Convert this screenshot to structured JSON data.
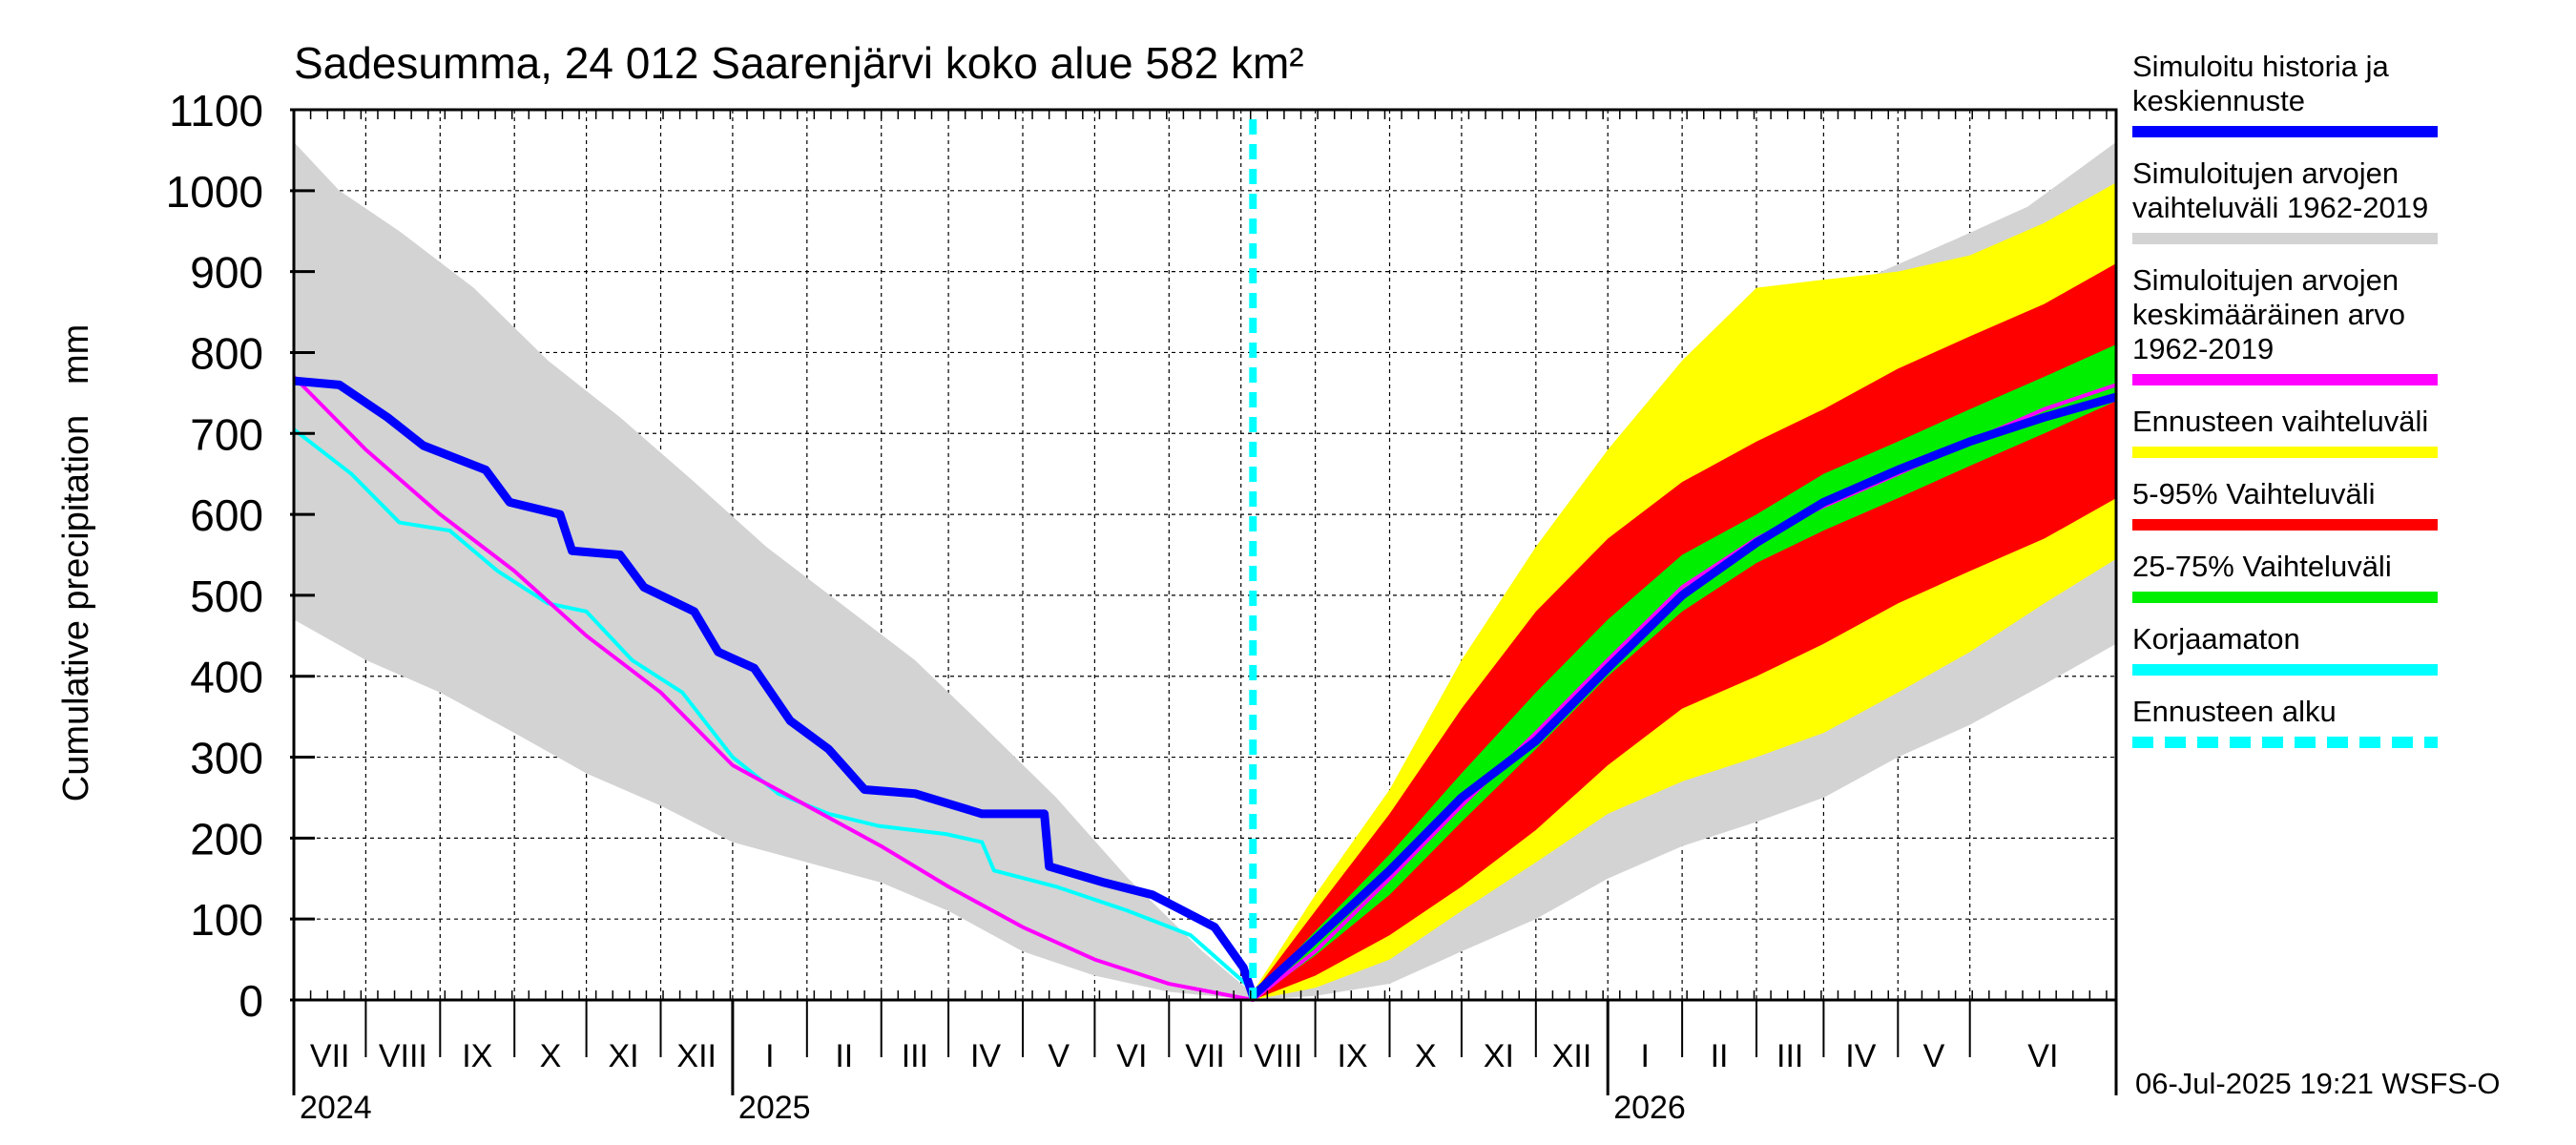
{
  "chart_data": {
    "type": "area",
    "title": "Sadesumma, 24 012 Saarenjärvi koko alue 582 km²",
    "ylabel": "Cumulative precipitation   mm",
    "xlabel": "",
    "ylim": [
      0,
      1100
    ],
    "yticks": [
      0,
      100,
      200,
      300,
      400,
      500,
      600,
      700,
      800,
      900,
      1000,
      1100
    ],
    "grid": true,
    "legend_position": "right",
    "x_range": [
      "2024-06-01",
      "2026-07-01"
    ],
    "forecast_start": "2025-07-06",
    "month_labels": [
      {
        "date": "2024-06-01",
        "label": "VII"
      },
      {
        "date": "2024-07-01",
        "label": "VIII"
      },
      {
        "date": "2024-08-01",
        "label": "IX"
      },
      {
        "date": "2024-09-01",
        "label": "X"
      },
      {
        "date": "2024-10-01",
        "label": "XI"
      },
      {
        "date": "2024-11-01",
        "label": "XII"
      },
      {
        "date": "2024-12-01",
        "label": "I"
      },
      {
        "date": "2025-01-01",
        "label": "II"
      },
      {
        "date": "2025-02-01",
        "label": "III"
      },
      {
        "date": "2025-03-01",
        "label": "IV"
      },
      {
        "date": "2025-04-01",
        "label": "V"
      },
      {
        "date": "2025-05-01",
        "label": "VI"
      },
      {
        "date": "2025-06-01",
        "label": "VII"
      },
      {
        "date": "2025-07-01",
        "label": "VIII"
      },
      {
        "date": "2025-08-01",
        "label": "IX"
      },
      {
        "date": "2025-09-01",
        "label": "X"
      },
      {
        "date": "2025-10-01",
        "label": "XI"
      },
      {
        "date": "2025-11-01",
        "label": "XII"
      },
      {
        "date": "2025-12-01",
        "label": "I"
      },
      {
        "date": "2026-01-01",
        "label": "II"
      },
      {
        "date": "2026-02-01",
        "label": "III"
      },
      {
        "date": "2026-03-01",
        "label": "IV"
      },
      {
        "date": "2026-04-01",
        "label": "V"
      },
      {
        "date": "2026-05-01",
        "label": "VI"
      }
    ],
    "year_labels": [
      {
        "date": "2024-06-01",
        "label": "2024"
      },
      {
        "date": "2024-12-01",
        "label": "2025"
      },
      {
        "date": "2025-12-01",
        "label": "2026"
      }
    ],
    "bands": [
      {
        "name": "Simuloitujen arvojen vaihteluväli 1962-2019",
        "color": "#d3d3d3",
        "upper": [
          [
            "2024-06-01",
            1060
          ],
          [
            "2024-06-20",
            1000
          ],
          [
            "2024-07-15",
            950
          ],
          [
            "2024-08-15",
            880
          ],
          [
            "2024-09-15",
            790
          ],
          [
            "2024-10-15",
            720
          ],
          [
            "2024-11-15",
            640
          ],
          [
            "2024-12-15",
            560
          ],
          [
            "2025-01-15",
            490
          ],
          [
            "2025-02-15",
            420
          ],
          [
            "2025-03-15",
            340
          ],
          [
            "2025-04-15",
            250
          ],
          [
            "2025-05-15",
            150
          ],
          [
            "2025-06-15",
            60
          ],
          [
            "2025-07-06",
            8
          ],
          [
            "2025-07-25",
            80
          ],
          [
            "2025-08-25",
            200
          ],
          [
            "2025-09-25",
            330
          ],
          [
            "2025-10-25",
            470
          ],
          [
            "2025-11-25",
            590
          ],
          [
            "2025-12-25",
            700
          ],
          [
            "2026-01-25",
            790
          ],
          [
            "2026-02-25",
            860
          ],
          [
            "2026-03-25",
            900
          ],
          [
            "2026-04-25",
            940
          ],
          [
            "2026-05-25",
            980
          ],
          [
            "2026-07-01",
            1060
          ]
        ],
        "lower": [
          [
            "2024-06-01",
            470
          ],
          [
            "2024-07-01",
            420
          ],
          [
            "2024-08-01",
            380
          ],
          [
            "2024-09-01",
            330
          ],
          [
            "2024-10-01",
            280
          ],
          [
            "2024-11-01",
            240
          ],
          [
            "2024-12-01",
            195
          ],
          [
            "2025-01-01",
            170
          ],
          [
            "2025-02-01",
            145
          ],
          [
            "2025-03-01",
            110
          ],
          [
            "2025-04-01",
            60
          ],
          [
            "2025-05-01",
            30
          ],
          [
            "2025-06-01",
            10
          ],
          [
            "2025-07-06",
            0
          ],
          [
            "2025-08-01",
            5
          ],
          [
            "2025-09-01",
            20
          ],
          [
            "2025-10-01",
            60
          ],
          [
            "2025-11-01",
            100
          ],
          [
            "2025-12-01",
            150
          ],
          [
            "2026-01-01",
            190
          ],
          [
            "2026-02-01",
            220
          ],
          [
            "2026-03-01",
            250
          ],
          [
            "2026-04-01",
            300
          ],
          [
            "2026-05-01",
            340
          ],
          [
            "2026-06-01",
            390
          ],
          [
            "2026-07-01",
            440
          ]
        ]
      },
      {
        "name": "Ennusteen vaihteluväli",
        "color": "#ffff00",
        "upper": [
          [
            "2025-07-06",
            10
          ],
          [
            "2025-08-01",
            130
          ],
          [
            "2025-09-01",
            260
          ],
          [
            "2025-10-01",
            420
          ],
          [
            "2025-11-01",
            560
          ],
          [
            "2025-12-01",
            680
          ],
          [
            "2026-01-01",
            790
          ],
          [
            "2026-02-01",
            880
          ],
          [
            "2026-03-01",
            890
          ],
          [
            "2026-04-01",
            900
          ],
          [
            "2026-05-01",
            920
          ],
          [
            "2026-06-01",
            960
          ],
          [
            "2026-07-01",
            1010
          ]
        ],
        "lower": [
          [
            "2025-07-06",
            0
          ],
          [
            "2025-08-01",
            15
          ],
          [
            "2025-09-01",
            50
          ],
          [
            "2025-10-01",
            110
          ],
          [
            "2025-11-01",
            170
          ],
          [
            "2025-12-01",
            230
          ],
          [
            "2026-01-01",
            270
          ],
          [
            "2026-02-01",
            300
          ],
          [
            "2026-03-01",
            330
          ],
          [
            "2026-04-01",
            380
          ],
          [
            "2026-05-01",
            430
          ],
          [
            "2026-06-01",
            490
          ],
          [
            "2026-07-01",
            545
          ]
        ]
      },
      {
        "name": "5-95% Vaihteluväli",
        "color": "#ff0000",
        "upper": [
          [
            "2025-07-06",
            8
          ],
          [
            "2025-08-01",
            110
          ],
          [
            "2025-09-01",
            230
          ],
          [
            "2025-10-01",
            360
          ],
          [
            "2025-11-01",
            480
          ],
          [
            "2025-12-01",
            570
          ],
          [
            "2026-01-01",
            640
          ],
          [
            "2026-02-01",
            690
          ],
          [
            "2026-03-01",
            730
          ],
          [
            "2026-04-01",
            780
          ],
          [
            "2026-05-01",
            820
          ],
          [
            "2026-06-01",
            860
          ],
          [
            "2026-07-01",
            910
          ]
        ],
        "lower": [
          [
            "2025-07-06",
            0
          ],
          [
            "2025-08-01",
            30
          ],
          [
            "2025-09-01",
            80
          ],
          [
            "2025-10-01",
            140
          ],
          [
            "2025-11-01",
            210
          ],
          [
            "2025-12-01",
            290
          ],
          [
            "2026-01-01",
            360
          ],
          [
            "2026-02-01",
            400
          ],
          [
            "2026-03-01",
            440
          ],
          [
            "2026-04-01",
            490
          ],
          [
            "2026-05-01",
            530
          ],
          [
            "2026-06-01",
            570
          ],
          [
            "2026-07-01",
            620
          ]
        ]
      },
      {
        "name": "25-75% Vaihteluväli",
        "color": "#00ee00",
        "upper": [
          [
            "2025-07-06",
            5
          ],
          [
            "2025-08-01",
            85
          ],
          [
            "2025-09-01",
            180
          ],
          [
            "2025-10-01",
            280
          ],
          [
            "2025-11-01",
            380
          ],
          [
            "2025-12-01",
            470
          ],
          [
            "2026-01-01",
            550
          ],
          [
            "2026-02-01",
            600
          ],
          [
            "2026-03-01",
            650
          ],
          [
            "2026-04-01",
            690
          ],
          [
            "2026-05-01",
            730
          ],
          [
            "2026-06-01",
            770
          ],
          [
            "2026-07-01",
            810
          ]
        ],
        "lower": [
          [
            "2025-07-06",
            0
          ],
          [
            "2025-08-01",
            55
          ],
          [
            "2025-09-01",
            130
          ],
          [
            "2025-10-01",
            220
          ],
          [
            "2025-11-01",
            310
          ],
          [
            "2025-12-01",
            400
          ],
          [
            "2026-01-01",
            480
          ],
          [
            "2026-02-01",
            540
          ],
          [
            "2026-03-01",
            580
          ],
          [
            "2026-04-01",
            620
          ],
          [
            "2026-05-01",
            660
          ],
          [
            "2026-06-01",
            700
          ],
          [
            "2026-07-01",
            740
          ]
        ]
      }
    ],
    "series": [
      {
        "name": "Korjaamaton",
        "color": "#00ffff",
        "width": 4,
        "points": [
          [
            "2024-06-01",
            705
          ],
          [
            "2024-06-25",
            650
          ],
          [
            "2024-07-15",
            590
          ],
          [
            "2024-08-05",
            580
          ],
          [
            "2024-08-25",
            530
          ],
          [
            "2024-09-15",
            490
          ],
          [
            "2024-10-01",
            480
          ],
          [
            "2024-10-20",
            420
          ],
          [
            "2024-11-10",
            380
          ],
          [
            "2024-12-01",
            300
          ],
          [
            "2024-12-20",
            255
          ],
          [
            "2025-01-10",
            230
          ],
          [
            "2025-01-31",
            215
          ],
          [
            "2025-02-28",
            205
          ],
          [
            "2025-03-15",
            195
          ],
          [
            "2025-03-20",
            160
          ],
          [
            "2025-04-15",
            140
          ],
          [
            "2025-05-15",
            110
          ],
          [
            "2025-06-10",
            80
          ],
          [
            "2025-07-03",
            20
          ],
          [
            "2025-07-06",
            5
          ]
        ]
      },
      {
        "name": "Simuloitujen arvojen keskimääräinen arvo 1962-2019",
        "color": "#ff00ff",
        "width": 4,
        "points": [
          [
            "2024-06-01",
            770
          ],
          [
            "2024-07-01",
            680
          ],
          [
            "2024-08-01",
            600
          ],
          [
            "2024-09-01",
            530
          ],
          [
            "2024-10-01",
            450
          ],
          [
            "2024-11-01",
            380
          ],
          [
            "2024-12-01",
            290
          ],
          [
            "2025-01-01",
            240
          ],
          [
            "2025-02-01",
            190
          ],
          [
            "2025-03-01",
            140
          ],
          [
            "2025-04-01",
            90
          ],
          [
            "2025-05-01",
            50
          ],
          [
            "2025-06-01",
            20
          ],
          [
            "2025-07-06",
            0
          ],
          [
            "2025-08-01",
            60
          ],
          [
            "2025-09-01",
            150
          ],
          [
            "2025-10-01",
            240
          ],
          [
            "2025-11-01",
            330
          ],
          [
            "2025-12-01",
            420
          ],
          [
            "2026-01-01",
            510
          ],
          [
            "2026-02-01",
            570
          ],
          [
            "2026-03-01",
            610
          ],
          [
            "2026-04-01",
            650
          ],
          [
            "2026-05-01",
            690
          ],
          [
            "2026-06-01",
            730
          ],
          [
            "2026-07-01",
            760
          ]
        ]
      },
      {
        "name": "Simuloitu historia ja keskiennuste",
        "color": "#0000ff",
        "width": 9,
        "points": [
          [
            "2024-06-01",
            765
          ],
          [
            "2024-06-20",
            760
          ],
          [
            "2024-07-10",
            720
          ],
          [
            "2024-07-25",
            685
          ],
          [
            "2024-08-20",
            655
          ],
          [
            "2024-08-30",
            615
          ],
          [
            "2024-09-20",
            600
          ],
          [
            "2024-09-25",
            555
          ],
          [
            "2024-10-15",
            550
          ],
          [
            "2024-10-25",
            510
          ],
          [
            "2024-11-15",
            480
          ],
          [
            "2024-11-25",
            430
          ],
          [
            "2024-12-10",
            410
          ],
          [
            "2024-12-25",
            345
          ],
          [
            "2025-01-10",
            310
          ],
          [
            "2025-01-25",
            260
          ],
          [
            "2025-02-15",
            255
          ],
          [
            "2025-03-15",
            230
          ],
          [
            "2025-04-10",
            230
          ],
          [
            "2025-04-12",
            165
          ],
          [
            "2025-05-05",
            145
          ],
          [
            "2025-05-25",
            130
          ],
          [
            "2025-06-20",
            90
          ],
          [
            "2025-07-02",
            40
          ],
          [
            "2025-07-06",
            5
          ],
          [
            "2025-08-01",
            75
          ],
          [
            "2025-09-01",
            160
          ],
          [
            "2025-10-01",
            250
          ],
          [
            "2025-11-01",
            320
          ],
          [
            "2025-12-01",
            410
          ],
          [
            "2026-01-01",
            500
          ],
          [
            "2026-02-01",
            565
          ],
          [
            "2026-03-01",
            615
          ],
          [
            "2026-04-01",
            655
          ],
          [
            "2026-05-01",
            690
          ],
          [
            "2026-06-01",
            720
          ],
          [
            "2026-07-01",
            745
          ]
        ]
      }
    ],
    "vline": {
      "name": "Ennusteen alku",
      "date": "2025-07-06",
      "color": "#00ffff"
    }
  },
  "legend": [
    {
      "label": "Simuloitu historia ja\nkeskiennuste",
      "color": "#0000ff"
    },
    {
      "label": "Simuloitujen arvojen\nvaihteluväli 1962-2019",
      "color": "#d3d3d3"
    },
    {
      "label": "Simuloitujen arvojen\nkeskimääräinen arvo\n   1962-2019",
      "color": "#ff00ff"
    },
    {
      "label": "Ennusteen vaihteluväli",
      "color": "#ffff00"
    },
    {
      "label": "5-95% Vaihteluväli",
      "color": "#ff0000"
    },
    {
      "label": "25-75% Vaihteluväli",
      "color": "#00ee00"
    },
    {
      "label": "Korjaamaton",
      "color": "#00ffff"
    },
    {
      "label": "Ennusteen alku",
      "color": "#00ffff"
    }
  ],
  "footer": {
    "stamp": "06-Jul-2025 19:21 WSFS-O"
  }
}
